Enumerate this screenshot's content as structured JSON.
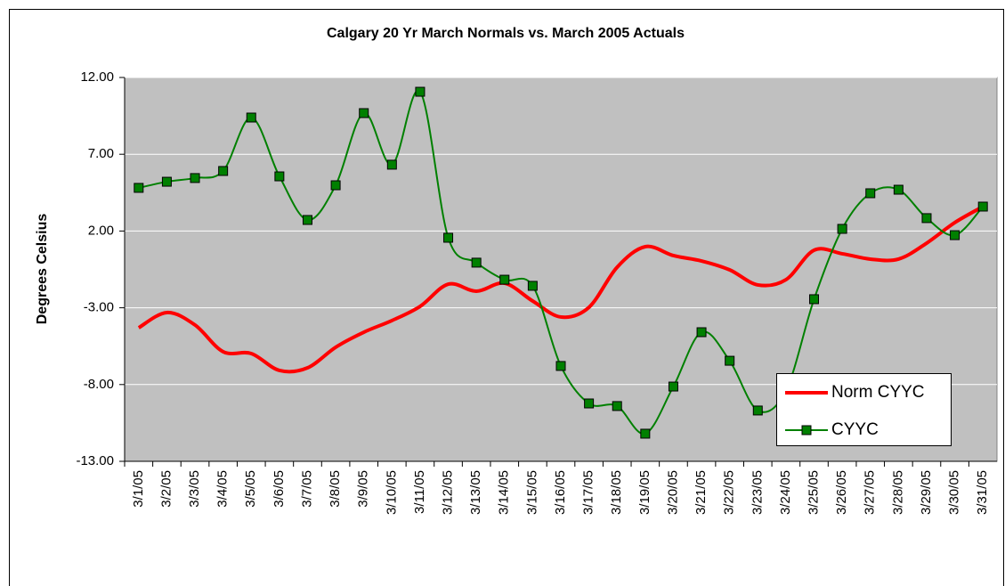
{
  "chart_data": {
    "type": "line",
    "title": "Calgary 20 Yr March Normals vs. March 2005 Actuals",
    "y_label": "Degrees Celsius",
    "categories": [
      "3/1/05",
      "3/2/05",
      "3/3/05",
      "3/4/05",
      "3/5/05",
      "3/6/05",
      "3/7/05",
      "3/8/05",
      "3/9/05",
      "3/10/05",
      "3/11/05",
      "3/12/05",
      "3/13/05",
      "3/14/05",
      "3/15/05",
      "3/16/05",
      "3/17/05",
      "3/18/05",
      "3/19/05",
      "3/20/05",
      "3/21/05",
      "3/22/05",
      "3/23/05",
      "3/24/05",
      "3/25/05",
      "3/26/05",
      "3/27/05",
      "3/28/05",
      "3/29/05",
      "3/30/05",
      "3/31/05"
    ],
    "series": [
      {
        "name": "Norm CYYC",
        "color": "#ff0000",
        "markers": false,
        "values": [
          -4.3,
          -3.31,
          -4.12,
          -5.86,
          -5.98,
          -7.08,
          -6.91,
          -5.57,
          -4.59,
          -3.83,
          -2.91,
          -1.46,
          -1.92,
          -1.4,
          -2.56,
          -3.6,
          -2.97,
          -0.36,
          0.98,
          0.4,
          0.05,
          -0.53,
          -1.51,
          -1.17,
          0.75,
          0.52,
          0.17,
          0.17,
          1.21,
          2.55,
          3.59
        ]
      },
      {
        "name": "CYYC",
        "color": "#008000",
        "markers": true,
        "values": [
          4.81,
          5.21,
          5.45,
          5.91,
          9.39,
          5.56,
          2.72,
          4.98,
          9.68,
          6.32,
          11.07,
          1.56,
          -0.06,
          -1.17,
          -1.57,
          -6.79,
          -9.23,
          -9.4,
          -11.2,
          -8.13,
          -4.59,
          -6.45,
          -9.69,
          -8.4,
          -2.44,
          2.14,
          4.46,
          4.69,
          2.84,
          1.73,
          3.59
        ]
      }
    ],
    "ylim": [
      -13,
      12
    ],
    "yticks": [
      {
        "value": -13,
        "label": "-13.00"
      },
      {
        "value": -8,
        "label": "-8.00"
      },
      {
        "value": -3,
        "label": "-3.00"
      },
      {
        "value": 2,
        "label": "2.00"
      },
      {
        "value": 7,
        "label": "7.00"
      },
      {
        "value": 12,
        "label": "12.00"
      }
    ],
    "grid": true,
    "smooth": true,
    "legend": "lower right"
  }
}
